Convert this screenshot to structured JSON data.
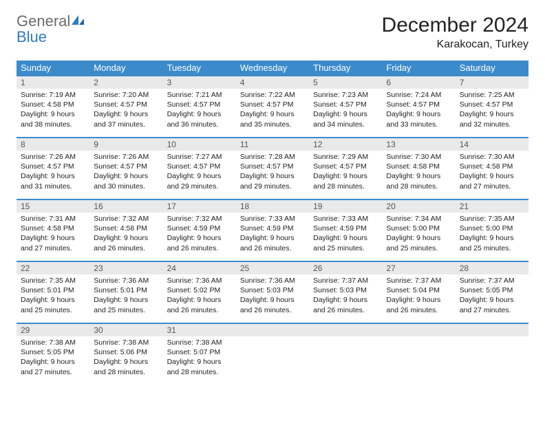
{
  "brand": {
    "name1": "General",
    "name2": "Blue",
    "color1": "#6a6a6a",
    "color2": "#2f7bc0"
  },
  "title": "December 2024",
  "location": "Karakocan, Turkey",
  "colors": {
    "header_bg": "#3b8bcb",
    "header_fg": "#ffffff",
    "daynum_bg": "#e9e9e9",
    "row_border": "#3b8bcb",
    "text": "#222222",
    "background": "#ffffff"
  },
  "typography": {
    "title_fontsize": 30,
    "location_fontsize": 16,
    "dayhead_fontsize": 13,
    "cell_fontsize": 10.5
  },
  "calendar": {
    "type": "table",
    "day_headers": [
      "Sunday",
      "Monday",
      "Tuesday",
      "Wednesday",
      "Thursday",
      "Friday",
      "Saturday"
    ],
    "weeks": [
      [
        {
          "day": 1,
          "sunrise": "7:19 AM",
          "sunset": "4:58 PM",
          "daylight": "9 hours and 38 minutes."
        },
        {
          "day": 2,
          "sunrise": "7:20 AM",
          "sunset": "4:57 PM",
          "daylight": "9 hours and 37 minutes."
        },
        {
          "day": 3,
          "sunrise": "7:21 AM",
          "sunset": "4:57 PM",
          "daylight": "9 hours and 36 minutes."
        },
        {
          "day": 4,
          "sunrise": "7:22 AM",
          "sunset": "4:57 PM",
          "daylight": "9 hours and 35 minutes."
        },
        {
          "day": 5,
          "sunrise": "7:23 AM",
          "sunset": "4:57 PM",
          "daylight": "9 hours and 34 minutes."
        },
        {
          "day": 6,
          "sunrise": "7:24 AM",
          "sunset": "4:57 PM",
          "daylight": "9 hours and 33 minutes."
        },
        {
          "day": 7,
          "sunrise": "7:25 AM",
          "sunset": "4:57 PM",
          "daylight": "9 hours and 32 minutes."
        }
      ],
      [
        {
          "day": 8,
          "sunrise": "7:26 AM",
          "sunset": "4:57 PM",
          "daylight": "9 hours and 31 minutes."
        },
        {
          "day": 9,
          "sunrise": "7:26 AM",
          "sunset": "4:57 PM",
          "daylight": "9 hours and 30 minutes."
        },
        {
          "day": 10,
          "sunrise": "7:27 AM",
          "sunset": "4:57 PM",
          "daylight": "9 hours and 29 minutes."
        },
        {
          "day": 11,
          "sunrise": "7:28 AM",
          "sunset": "4:57 PM",
          "daylight": "9 hours and 29 minutes."
        },
        {
          "day": 12,
          "sunrise": "7:29 AM",
          "sunset": "4:57 PM",
          "daylight": "9 hours and 28 minutes."
        },
        {
          "day": 13,
          "sunrise": "7:30 AM",
          "sunset": "4:58 PM",
          "daylight": "9 hours and 28 minutes."
        },
        {
          "day": 14,
          "sunrise": "7:30 AM",
          "sunset": "4:58 PM",
          "daylight": "9 hours and 27 minutes."
        }
      ],
      [
        {
          "day": 15,
          "sunrise": "7:31 AM",
          "sunset": "4:58 PM",
          "daylight": "9 hours and 27 minutes."
        },
        {
          "day": 16,
          "sunrise": "7:32 AM",
          "sunset": "4:58 PM",
          "daylight": "9 hours and 26 minutes."
        },
        {
          "day": 17,
          "sunrise": "7:32 AM",
          "sunset": "4:59 PM",
          "daylight": "9 hours and 26 minutes."
        },
        {
          "day": 18,
          "sunrise": "7:33 AM",
          "sunset": "4:59 PM",
          "daylight": "9 hours and 26 minutes."
        },
        {
          "day": 19,
          "sunrise": "7:33 AM",
          "sunset": "4:59 PM",
          "daylight": "9 hours and 25 minutes."
        },
        {
          "day": 20,
          "sunrise": "7:34 AM",
          "sunset": "5:00 PM",
          "daylight": "9 hours and 25 minutes."
        },
        {
          "day": 21,
          "sunrise": "7:35 AM",
          "sunset": "5:00 PM",
          "daylight": "9 hours and 25 minutes."
        }
      ],
      [
        {
          "day": 22,
          "sunrise": "7:35 AM",
          "sunset": "5:01 PM",
          "daylight": "9 hours and 25 minutes."
        },
        {
          "day": 23,
          "sunrise": "7:36 AM",
          "sunset": "5:01 PM",
          "daylight": "9 hours and 25 minutes."
        },
        {
          "day": 24,
          "sunrise": "7:36 AM",
          "sunset": "5:02 PM",
          "daylight": "9 hours and 26 minutes."
        },
        {
          "day": 25,
          "sunrise": "7:36 AM",
          "sunset": "5:03 PM",
          "daylight": "9 hours and 26 minutes."
        },
        {
          "day": 26,
          "sunrise": "7:37 AM",
          "sunset": "5:03 PM",
          "daylight": "9 hours and 26 minutes."
        },
        {
          "day": 27,
          "sunrise": "7:37 AM",
          "sunset": "5:04 PM",
          "daylight": "9 hours and 26 minutes."
        },
        {
          "day": 28,
          "sunrise": "7:37 AM",
          "sunset": "5:05 PM",
          "daylight": "9 hours and 27 minutes."
        }
      ],
      [
        {
          "day": 29,
          "sunrise": "7:38 AM",
          "sunset": "5:05 PM",
          "daylight": "9 hours and 27 minutes."
        },
        {
          "day": 30,
          "sunrise": "7:38 AM",
          "sunset": "5:06 PM",
          "daylight": "9 hours and 28 minutes."
        },
        {
          "day": 31,
          "sunrise": "7:38 AM",
          "sunset": "5:07 PM",
          "daylight": "9 hours and 28 minutes."
        },
        null,
        null,
        null,
        null
      ]
    ],
    "labels": {
      "sunrise": "Sunrise:",
      "sunset": "Sunset:",
      "daylight": "Daylight:"
    }
  }
}
